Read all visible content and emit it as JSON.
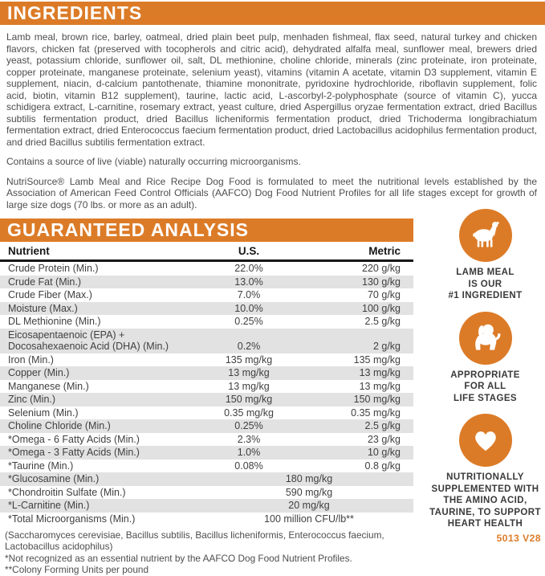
{
  "colors": {
    "orange": "#dc7b27",
    "row_gray": "#e2e2e2"
  },
  "ingredients": {
    "title": "INGREDIENTS",
    "text": "Lamb meal, brown rice, barley, oatmeal, dried plain beet pulp, menhaden fishmeal, flax seed, natural turkey and chicken flavors, chicken fat (preserved with tocopherols and citric acid), dehydrated alfalfa meal, sunflower meal, brewers dried yeast, potassium chloride, sunflower oil, salt, DL methionine, choline chloride, minerals (zinc proteinate, iron proteinate, copper proteinate, manganese proteinate, selenium yeast), vitamins (vitamin A acetate, vitamin D3 supplement, vitamin E supplement, niacin, d-calcium pantothenate, thiamine mononitrate, pyridoxine hydrochloride, riboflavin supplement, folic acid, biotin, vitamin B12 supplement), taurine, lactic acid, L-ascorbyl-2-polyphosphate (source of vitamin C), yucca schidigera extract, L-carnitine, rosemary extract, yeast culture, dried Aspergillus oryzae fermentation extract, dried Bacillus subtilis fermentation product, dried Bacillus licheniformis fermentation product, dried Trichoderma longibrachiatum fermentation extract, dried Enterococcus faecium fermentation product, dried Lactobacillus acidophilus fermentation product, and dried Bacillus subtilis fermentation extract.",
    "contains_note": "Contains a source of live (viable) naturally occurring microorganisms.",
    "aafco_statement": "NutriSource® Lamb Meal and Rice Recipe Dog Food is formulated to meet the nutritional levels established by the Association of American Feed Control Officials (AAFCO) Dog Food Nutrient Profiles for all life stages except for growth of large size dogs (70 lbs. or more as an adult)."
  },
  "analysis": {
    "title": "GUARANTEED ANALYSIS",
    "columns": [
      "Nutrient",
      "U.S.",
      "Metric"
    ],
    "rows": [
      {
        "nutrient": "Crude Protein (Min.)",
        "us": "22.0%",
        "metric": "220 g/kg",
        "shaded": false
      },
      {
        "nutrient": "Crude Fat (Min.)",
        "us": "13.0%",
        "metric": "130 g/kg",
        "shaded": true
      },
      {
        "nutrient": "Crude Fiber (Max.)",
        "us": "7.0%",
        "metric": "70 g/kg",
        "shaded": false
      },
      {
        "nutrient": "Moisture (Max.)",
        "us": "10.0%",
        "metric": "100 g/kg",
        "shaded": true
      },
      {
        "nutrient": "DL Methionine (Min.)",
        "us": "0.25%",
        "metric": "2.5 g/kg",
        "shaded": false
      },
      {
        "nutrient": "Eicosapentaenoic (EPA) +\nDocosahexaenoic Acid (DHA) (Min.)",
        "us": "0.2%",
        "metric": "2 g/kg",
        "shaded": true
      },
      {
        "nutrient": "Iron (Min.)",
        "us": "135 mg/kg",
        "metric": "135 mg/kg",
        "shaded": false
      },
      {
        "nutrient": "Copper (Min.)",
        "us": "13 mg/kg",
        "metric": "13 mg/kg",
        "shaded": true
      },
      {
        "nutrient": "Manganese (Min.)",
        "us": "13 mg/kg",
        "metric": "13 mg/kg",
        "shaded": false
      },
      {
        "nutrient": "Zinc (Min.)",
        "us": "150 mg/kg",
        "metric": "150 mg/kg",
        "shaded": true
      },
      {
        "nutrient": "Selenium (Min.)",
        "us": "0.35 mg/kg",
        "metric": "0.35 mg/kg",
        "shaded": false
      },
      {
        "nutrient": "Choline Chloride (Min.)",
        "us": "0.25%",
        "metric": "2.5 g/kg",
        "shaded": true
      },
      {
        "nutrient": "*Omega - 6 Fatty Acids (Min.)",
        "us": "2.3%",
        "metric": "23 g/kg",
        "shaded": false
      },
      {
        "nutrient": "*Omega - 3 Fatty Acids (Min.)",
        "us": "1.0%",
        "metric": "10 g/kg",
        "shaded": true
      },
      {
        "nutrient": "*Taurine (Min.)",
        "us": "0.08%",
        "metric": "0.8 g/kg",
        "shaded": false
      },
      {
        "nutrient": "*Glucosamine (Min.)",
        "value": "180 mg/kg",
        "merged": true,
        "shaded": true
      },
      {
        "nutrient": "*Chondroitin Sulfate (Min.)",
        "value": "590 mg/kg",
        "merged": true,
        "shaded": false
      },
      {
        "nutrient": "*L-Carnitine (Min.)",
        "value": "20 mg/kg",
        "merged": true,
        "shaded": true
      },
      {
        "nutrient": "*Total Microorganisms (Min.)",
        "value": "100 million CFU/lb**",
        "merged": true,
        "shaded": false
      }
    ],
    "footnotes": [
      "(Saccharomyces cerevisiae, Bacillus subtilis, Bacillus licheniformis, Enterococcus faecium, Lactobacillus acidophilus)",
      "*Not recognized as an essential nutrient by the AAFCO Dog Food Nutrient Profiles.",
      "**Colony Forming Units per pound"
    ]
  },
  "badges": [
    {
      "icon": "lamb",
      "lines": [
        "LAMB MEAL",
        "IS OUR",
        "#1 INGREDIENT"
      ]
    },
    {
      "icon": "puppy",
      "lines": [
        "APPROPRIATE",
        "FOR ALL",
        "LIFE STAGES"
      ]
    },
    {
      "icon": "heart",
      "lines": [
        "NUTRITIONALLY",
        "SUPPLEMENTED WITH",
        "THE AMINO ACID,",
        "TAURINE, TO SUPPORT",
        "HEART HEALTH"
      ]
    }
  ],
  "code": "5013 V28"
}
